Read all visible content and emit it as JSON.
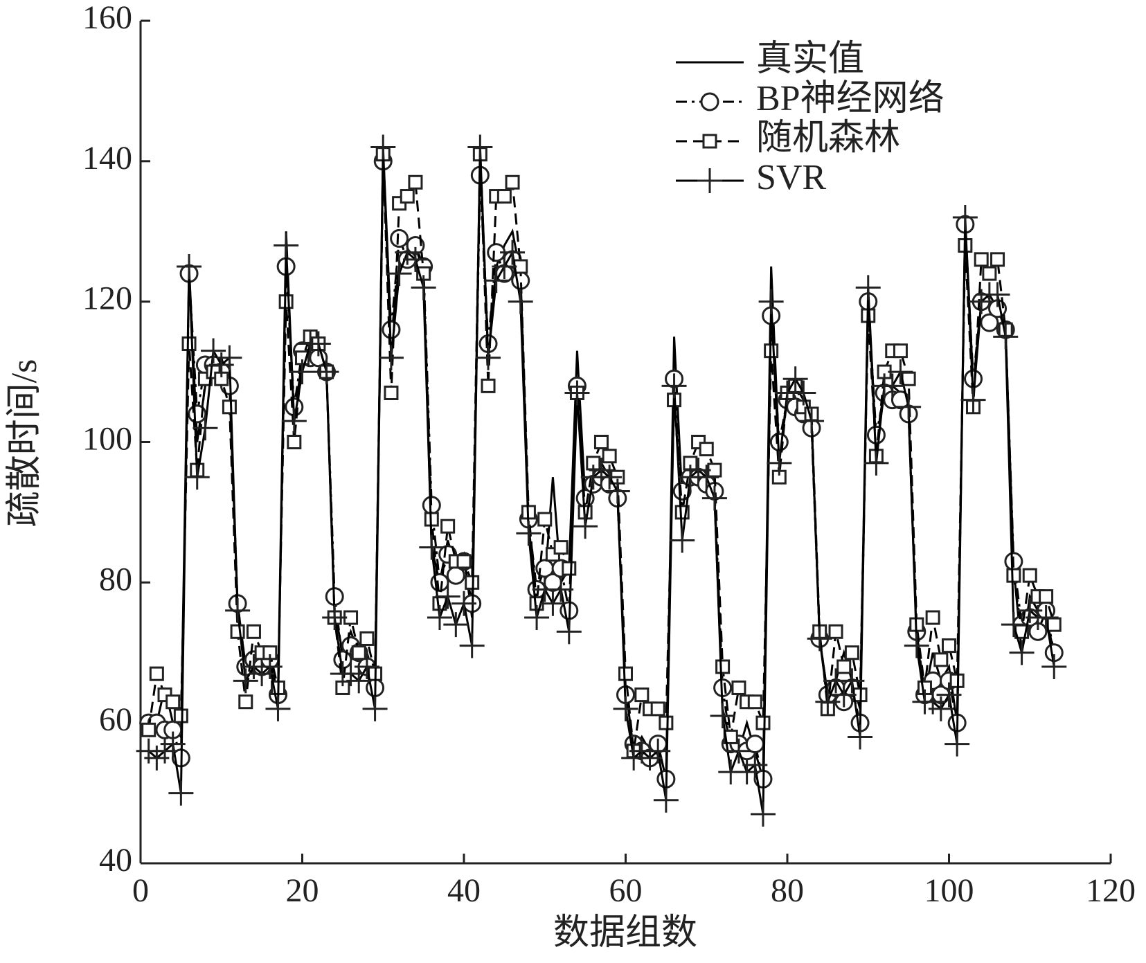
{
  "chart_data": {
    "type": "line",
    "xlabel": "数据组数",
    "ylabel": "疏散时间/s",
    "xlim": [
      0,
      120
    ],
    "xticks": [
      0,
      20,
      40,
      60,
      80,
      100,
      120
    ],
    "ylim": [
      40,
      160
    ],
    "yticks": [
      40,
      60,
      80,
      100,
      120,
      140,
      160
    ],
    "grid": false,
    "legend": "upper right",
    "x": [
      1,
      2,
      3,
      4,
      5,
      6,
      7,
      8,
      9,
      10,
      11,
      12,
      13,
      14,
      15,
      16,
      17,
      18,
      19,
      20,
      21,
      22,
      23,
      24,
      25,
      26,
      27,
      28,
      29,
      30,
      31,
      32,
      33,
      34,
      35,
      36,
      37,
      38,
      39,
      40,
      41,
      42,
      43,
      44,
      45,
      46,
      47,
      48,
      49,
      50,
      51,
      52,
      53,
      54,
      55,
      56,
      57,
      58,
      59,
      60,
      61,
      62,
      63,
      64,
      65,
      66,
      67,
      68,
      69,
      70,
      71,
      72,
      73,
      74,
      75,
      76,
      77,
      78,
      79,
      80,
      81,
      82,
      83,
      84,
      85,
      86,
      87,
      88,
      89,
      90,
      91,
      92,
      93,
      94,
      95,
      96,
      97,
      98,
      99,
      100,
      101,
      102,
      103,
      104,
      105,
      106,
      107,
      108,
      109,
      110,
      111,
      112,
      113
    ],
    "series": [
      {
        "name": "真实值",
        "color": "#000000",
        "line_style": "solid",
        "marker": "none",
        "values": [
          58,
          60,
          65,
          60,
          58,
          125,
          100,
          108,
          110,
          112,
          108,
          77,
          68,
          70,
          68,
          69,
          64,
          130,
          103,
          112,
          113,
          112,
          110,
          76,
          70,
          73,
          70,
          70,
          66,
          142,
          115,
          125,
          126,
          128,
          124,
          85,
          80,
          86,
          82,
          84,
          75,
          142,
          112,
          125,
          128,
          130,
          124,
          88,
          78,
          80,
          95,
          80,
          82,
          113,
          92,
          95,
          97,
          95,
          92,
          65,
          56,
          58,
          56,
          57,
          52,
          115,
          92,
          95,
          96,
          95,
          92,
          62,
          57,
          56,
          60,
          56,
          52,
          125,
          98,
          106,
          108,
          106,
          103,
          72,
          64,
          66,
          70,
          66,
          62,
          122,
          99,
          107,
          108,
          107,
          104,
          72,
          64,
          70,
          66,
          68,
          60,
          132,
          108,
          120,
          121,
          119,
          116,
          82,
          70,
          78,
          76,
          75,
          70
        ]
      },
      {
        "name": "BP神经网络",
        "color": "#000000",
        "line_style": "dashdot",
        "marker": "circle",
        "values": [
          60,
          60,
          59,
          59,
          55,
          124,
          104,
          111,
          111,
          110,
          108,
          77,
          68,
          69,
          68,
          69,
          64,
          125,
          105,
          113,
          112,
          112,
          110,
          78,
          69,
          71,
          70,
          68,
          65,
          140,
          116,
          129,
          126,
          128,
          125,
          91,
          80,
          84,
          81,
          83,
          77,
          138,
          114,
          127,
          124,
          126,
          123,
          89,
          79,
          82,
          80,
          82,
          76,
          108,
          92,
          94,
          95,
          94,
          92,
          64,
          57,
          56,
          55,
          57,
          52,
          109,
          93,
          95,
          95,
          94,
          93,
          65,
          57,
          57,
          56,
          57,
          52,
          118,
          100,
          106,
          105,
          104,
          102,
          72,
          64,
          65,
          63,
          65,
          60,
          120,
          101,
          107,
          106,
          106,
          104,
          73,
          64,
          66,
          64,
          66,
          60,
          131,
          109,
          120,
          117,
          119,
          116,
          83,
          74,
          75,
          73,
          76,
          70
        ]
      },
      {
        "name": "随机森林",
        "color": "#000000",
        "line_style": "dashed",
        "marker": "square",
        "values": [
          59,
          67,
          64,
          63,
          61,
          114,
          96,
          109,
          110,
          109,
          105,
          73,
          63,
          73,
          70,
          70,
          65,
          120,
          100,
          112,
          115,
          114,
          110,
          75,
          65,
          75,
          70,
          72,
          67,
          141,
          107,
          134,
          135,
          137,
          124,
          89,
          77,
          88,
          83,
          83,
          80,
          141,
          108,
          135,
          135,
          137,
          125,
          90,
          77,
          89,
          84,
          85,
          82,
          107,
          90,
          97,
          100,
          98,
          95,
          67,
          56,
          64,
          62,
          62,
          60,
          106,
          90,
          97,
          100,
          99,
          96,
          68,
          58,
          65,
          63,
          63,
          60,
          113,
          95,
          107,
          108,
          105,
          104,
          73,
          62,
          73,
          68,
          70,
          64,
          118,
          98,
          110,
          113,
          113,
          109,
          74,
          65,
          75,
          69,
          71,
          66,
          128,
          105,
          126,
          124,
          126,
          116,
          81,
          73,
          81,
          78,
          78,
          74
        ]
      },
      {
        "name": "SVR",
        "color": "#000000",
        "line_style": "solid",
        "marker": "plus",
        "values": [
          56,
          55,
          56,
          57,
          50,
          125,
          95,
          102,
          113,
          111,
          112,
          76,
          66,
          68,
          67,
          68,
          62,
          128,
          103,
          110,
          114,
          114,
          110,
          75,
          67,
          67,
          66,
          68,
          62,
          142,
          112,
          124,
          127,
          126,
          122,
          85,
          75,
          78,
          74,
          77,
          71,
          142,
          112,
          123,
          125,
          127,
          120,
          87,
          75,
          79,
          77,
          79,
          73,
          107,
          88,
          95,
          96,
          95,
          93,
          62,
          55,
          56,
          55,
          56,
          49,
          108,
          86,
          95,
          96,
          95,
          92,
          61,
          53,
          56,
          53,
          54,
          47,
          120,
          97,
          107,
          109,
          107,
          103,
          72,
          63,
          66,
          64,
          66,
          58,
          122,
          97,
          108,
          108,
          110,
          105,
          71,
          63,
          63,
          62,
          64,
          57,
          132,
          106,
          120,
          121,
          121,
          115,
          74,
          70,
          76,
          75,
          75,
          68
        ]
      }
    ]
  }
}
